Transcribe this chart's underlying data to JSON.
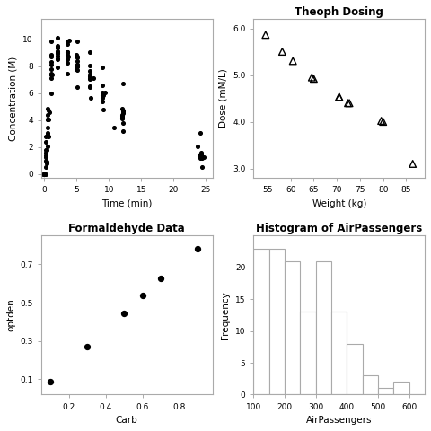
{
  "theoph_time": [
    0.0,
    0.25,
    0.57,
    1.12,
    2.02,
    3.82,
    5.1,
    7.03,
    9.05,
    12.12,
    24.37,
    0.0,
    0.27,
    0.52,
    1.0,
    2.02,
    3.55,
    5.02,
    7.07,
    9.0,
    12.15,
    24.17,
    0.0,
    0.25,
    0.5,
    1.02,
    2.02,
    3.53,
    5.07,
    7.08,
    9.0,
    12.1,
    24.35,
    0.0,
    0.25,
    0.52,
    0.98,
    2.02,
    3.53,
    5.05,
    7.15,
    9.07,
    12.1,
    24.22,
    0.0,
    0.3,
    0.52,
    1.0,
    2.0,
    3.5,
    5.02,
    7.03,
    9.0,
    12.0,
    24.3,
    0.0,
    0.27,
    0.58,
    1.02,
    2.02,
    3.62,
    5.08,
    7.07,
    9.03,
    12.05,
    24.43,
    0.0,
    0.25,
    0.5,
    1.0,
    2.0,
    3.5,
    5.0,
    7.0,
    9.0,
    12.0,
    24.0,
    0.0,
    0.25,
    0.52,
    1.0,
    2.02,
    3.5,
    5.02,
    7.07,
    9.0,
    12.0,
    24.15,
    0.0,
    0.3,
    0.63,
    1.05,
    2.02,
    3.53,
    5.02,
    7.17,
    10.8,
    12.0,
    24.65,
    0.0,
    0.37,
    0.77,
    1.02,
    2.05,
    3.55,
    5.08,
    7.6,
    9.38,
    12.1,
    23.7,
    0.0,
    0.25,
    0.5,
    1.02,
    2.02,
    3.48,
    5.0,
    6.98,
    9.0,
    12.05,
    24.22,
    0.0,
    0.27,
    0.52,
    1.0,
    2.0,
    3.55,
    5.08,
    7.08,
    9.0,
    12.1,
    24.12
  ],
  "theoph_conc": [
    0.0,
    1.76,
    2.77,
    7.37,
    9.03,
    9.9,
    8.35,
    6.47,
    4.77,
    3.14,
    0.5,
    0.0,
    1.24,
    2.88,
    7.08,
    8.97,
    9.84,
    9.85,
    9.04,
    7.88,
    6.72,
    3.07,
    0.0,
    1.0,
    4.38,
    9.82,
    10.1,
    9.82,
    8.63,
    7.64,
    5.85,
    3.77,
    1.18,
    0.0,
    2.76,
    3.47,
    8.09,
    8.8,
    8.48,
    8.0,
    7.08,
    5.81,
    4.53,
    1.46,
    0.0,
    1.76,
    4.07,
    8.3,
    9.36,
    9.07,
    8.13,
    7.08,
    5.85,
    4.17,
    1.55,
    0.0,
    2.34,
    4.7,
    8.71,
    9.4,
    8.7,
    7.95,
    7.01,
    5.81,
    4.31,
    1.23,
    0.0,
    1.37,
    4.02,
    7.44,
    8.98,
    9.03,
    7.8,
    6.51,
    5.36,
    4.09,
    1.3,
    0.0,
    0.5,
    2.02,
    7.35,
    8.56,
    8.81,
    8.11,
    7.25,
    6.04,
    4.39,
    1.16,
    0.0,
    0.89,
    4.07,
    7.39,
    7.89,
    7.46,
    6.43,
    5.62,
    3.44,
    4.87,
    1.26,
    0.0,
    0.74,
    4.56,
    5.94,
    8.5,
    8.24,
    7.72,
    7.09,
    6.04,
    4.7,
    2.07,
    0.0,
    1.58,
    4.85,
    8.82,
    9.5,
    9.65,
    8.86,
    7.37,
    5.62,
    4.14,
    1.44,
    0.0,
    0.0,
    3.01,
    7.8,
    9.14,
    9.02,
    8.74,
    8.06,
    6.6,
    4.65,
    1.47
  ],
  "theoph_weight": [
    79.6,
    72.4,
    70.5,
    72.7,
    54.6,
    80.0,
    64.6,
    70.5,
    86.4,
    58.2,
    65.0,
    60.5
  ],
  "theoph_dose": [
    4.02,
    4.4,
    4.53,
    4.4,
    5.86,
    4.0,
    4.95,
    4.53,
    3.1,
    5.5,
    4.92,
    5.3
  ],
  "formaldehyde_carb": [
    0.1,
    0.3,
    0.5,
    0.6,
    0.7,
    0.9
  ],
  "formaldehyde_optden": [
    0.086,
    0.269,
    0.446,
    0.538,
    0.626,
    0.782
  ],
  "hist_bin_edges": [
    100,
    150,
    200,
    250,
    300,
    350,
    400,
    450,
    500,
    550,
    600,
    650
  ],
  "hist_freq": [
    23,
    23,
    21,
    13,
    21,
    13,
    8,
    3,
    1,
    2,
    0
  ],
  "top_left_xlabel": "Time (min)",
  "top_left_ylabel": "Concentration (M)",
  "top_right_title": "Theoph Dosing",
  "top_right_xlabel": "Weight (kg)",
  "top_right_ylabel": "Dose (mM/L)",
  "bottom_left_title": "Formaldehyde Data",
  "bottom_left_xlabel": "Carb",
  "bottom_left_ylabel": "optden",
  "bottom_right_title": "Histogram of AirPassengers",
  "bottom_right_xlabel": "AirPassengers",
  "bottom_right_ylabel": "Frequency",
  "spine_color": "#aaaaaa",
  "bg_color": "#ffffff"
}
